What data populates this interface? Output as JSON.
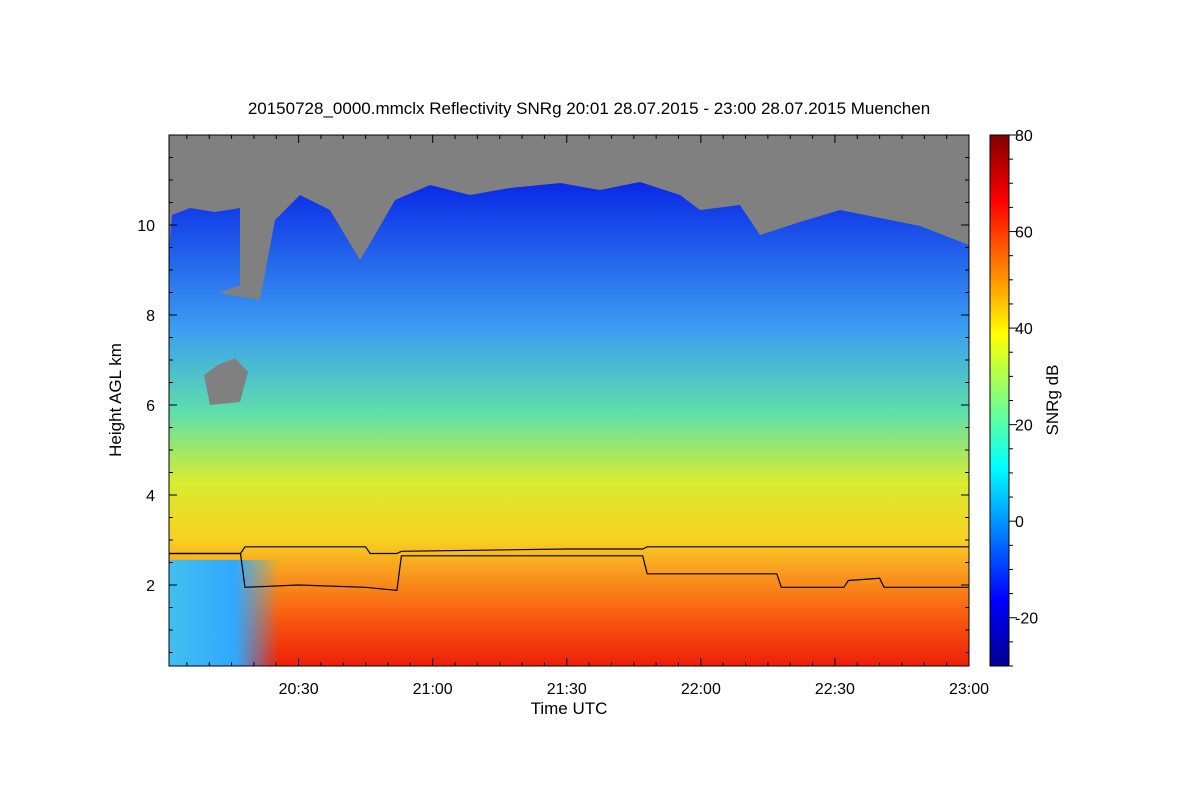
{
  "chart_data": {
    "type": "heatmap",
    "title": "20150728_0000.mmclx Reflectivity SNRg   20:01 28.07.2015 - 23:00 28.07.2015 Muenchen",
    "xlabel": "Time UTC",
    "ylabel": "Height AGL km",
    "xlim": [
      "20:01",
      "23:00"
    ],
    "ylim": [
      0.2,
      12.0
    ],
    "x_ticks": [
      "20:30",
      "21:00",
      "21:30",
      "22:00",
      "22:30",
      "23:00"
    ],
    "y_ticks": [
      2,
      4,
      6,
      8,
      10
    ],
    "colorbar": {
      "label": "SNRg dB",
      "range": [
        -30,
        80
      ],
      "ticks": [
        -20,
        0,
        20,
        40,
        60,
        80
      ],
      "colormap": "jet"
    },
    "no_signal_color": "#808080",
    "series": [
      {
        "x": [
          "20:01",
          "20:17",
          "20:18",
          "20:30",
          "20:45",
          "20:46",
          "20:52",
          "20:53",
          "21:30",
          "21:47",
          "21:48",
          "22:17",
          "22:18",
          "22:55",
          "23:00"
        ],
        "y": [
          2.7,
          2.7,
          2.85,
          2.85,
          2.85,
          2.7,
          2.7,
          2.75,
          2.8,
          2.8,
          2.85,
          2.85,
          2.85,
          2.85,
          2.85
        ]
      },
      {
        "x": [
          "20:01",
          "20:17",
          "20:18",
          "20:30",
          "20:45",
          "20:52",
          "20:53",
          "21:00",
          "21:47",
          "21:48",
          "22:17",
          "22:18",
          "22:32",
          "22:33",
          "22:40",
          "22:41",
          "23:00"
        ],
        "y": [
          2.7,
          2.7,
          1.95,
          2.0,
          1.95,
          1.88,
          2.65,
          2.65,
          2.65,
          2.25,
          2.25,
          1.95,
          1.95,
          2.1,
          2.15,
          1.95,
          1.95
        ]
      }
    ]
  }
}
